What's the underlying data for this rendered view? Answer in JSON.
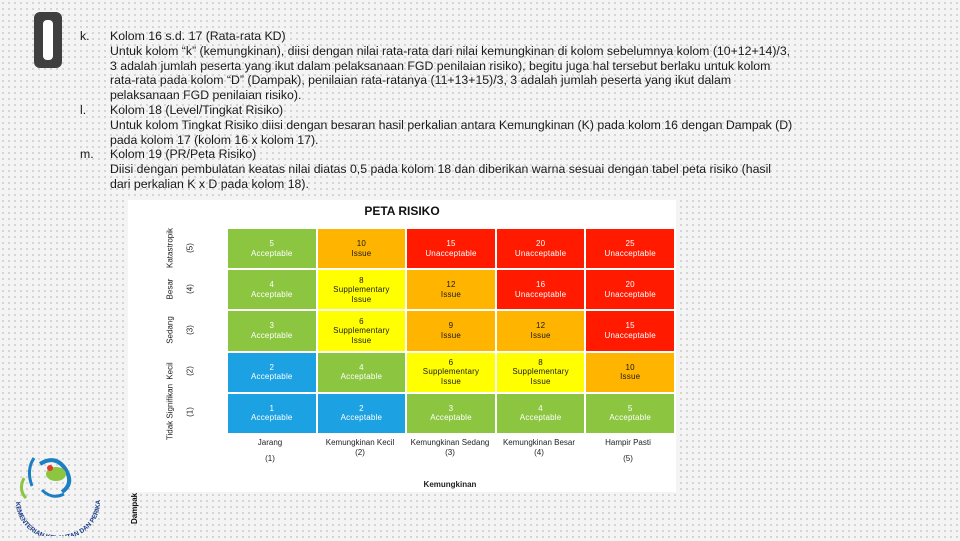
{
  "document": {
    "items": [
      {
        "marker": "k.",
        "lines": [
          "Kolom 16 s.d. 17 (Rata-rata KD)",
          "Untuk kolom “k” (kemungkinan), diisi dengan nilai rata-rata dari nilai kemungkinan di kolom sebelumnya kolom (10+12+14)/3,",
          "3 adalah jumlah peserta yang ikut dalam pelaksanaan FGD penilaian risiko), begitu juga hal tersebut berlaku untuk kolom",
          "rata-rata pada kolom “D” (Dampak), penilaian rata-ratanya (11+13+15)/3, 3 adalah jumlah peserta yang ikut dalam",
          "pelaksanaan FGD penilaian risiko)."
        ]
      },
      {
        "marker": "l.",
        "lines": [
          "Kolom 18 (Level/Tingkat Risiko)",
          "Untuk kolom Tingkat Risiko diisi dengan besaran hasil perkalian antara Kemungkinan (K) pada kolom 16 dengan Dampak (D)",
          "pada kolom 17 (kolom 16 x kolom 17)."
        ]
      },
      {
        "marker": "m.",
        "lines": [
          "Kolom 19 (PR/Peta Risiko)",
          "Diisi dengan pembulatan keatas nilai diatas 0,5 pada kolom 18 dan diberikan warna sesuai dengan tabel peta risiko (hasil",
          "dari perkalian K x D pada kolom 18)."
        ]
      }
    ]
  },
  "peta_risiko": {
    "title": "PETA RISIKO",
    "y_axis_title": "Dampak",
    "x_axis_title": "Kemungkinan",
    "y_labels": [
      {
        "name": "Katastropik",
        "num": "(5)"
      },
      {
        "name": "Besar",
        "num": "(4)"
      },
      {
        "name": "Sedang",
        "num": "(3)"
      },
      {
        "name": "Kecil",
        "num": "(2)"
      },
      {
        "name": "Tidak Signifikan",
        "num": "(1)"
      }
    ],
    "x_labels": [
      {
        "name": "Jarang",
        "num": "(1)"
      },
      {
        "name": "Kemungkinan Kecil",
        "num": "(2)"
      },
      {
        "name": "Kemungkinan Sedang",
        "num": "(3)"
      },
      {
        "name": "Kemungkinan Besar",
        "num": "(4)"
      },
      {
        "name": "Hampir Pasti",
        "num": "(5)"
      }
    ],
    "colors": {
      "green": "#8cc640",
      "yellow": "#ffff00",
      "orange": "#ffb400",
      "red": "#ff1a00",
      "blue": "#1ca2e2"
    },
    "rows": [
      [
        {
          "value": "5",
          "label": "Acceptable",
          "color": "green"
        },
        {
          "value": "10",
          "label": "Issue",
          "color": "orange"
        },
        {
          "value": "15",
          "label": "Unacceptable",
          "color": "red"
        },
        {
          "value": "20",
          "label": "Unacceptable",
          "color": "red"
        },
        {
          "value": "25",
          "label": "Unacceptable",
          "color": "red"
        }
      ],
      [
        {
          "value": "4",
          "label": "Acceptable",
          "color": "green"
        },
        {
          "value": "8",
          "label": "Supplementary Issue",
          "color": "yellow"
        },
        {
          "value": "12",
          "label": "Issue",
          "color": "orange"
        },
        {
          "value": "16",
          "label": "Unacceptable",
          "color": "red"
        },
        {
          "value": "20",
          "label": "Unacceptable",
          "color": "red"
        }
      ],
      [
        {
          "value": "3",
          "label": "Acceptable",
          "color": "green"
        },
        {
          "value": "6",
          "label": "Supplementary Issue",
          "color": "yellow"
        },
        {
          "value": "9",
          "label": "Issue",
          "color": "orange"
        },
        {
          "value": "12",
          "label": "Issue",
          "color": "orange"
        },
        {
          "value": "15",
          "label": "Unacceptable",
          "color": "red"
        }
      ],
      [
        {
          "value": "2",
          "label": "Acceptable",
          "color": "blue"
        },
        {
          "value": "4",
          "label": "Acceptable",
          "color": "green"
        },
        {
          "value": "6",
          "label": "Supplementary Issue",
          "color": "yellow"
        },
        {
          "value": "8",
          "label": "Supplementary Issue",
          "color": "yellow"
        },
        {
          "value": "10",
          "label": "Issue",
          "color": "orange"
        }
      ],
      [
        {
          "value": "1",
          "label": "Acceptable",
          "color": "blue"
        },
        {
          "value": "2",
          "label": "Acceptable",
          "color": "blue"
        },
        {
          "value": "3",
          "label": "Acceptable",
          "color": "green"
        },
        {
          "value": "4",
          "label": "Acceptable",
          "color": "green"
        },
        {
          "value": "5",
          "label": "Acceptable",
          "color": "green"
        }
      ]
    ]
  },
  "logo": {
    "text": "KEMENTERIAN KELAUTAN DAN PERIKANAN",
    "icon": "kkp-logo-icon"
  }
}
